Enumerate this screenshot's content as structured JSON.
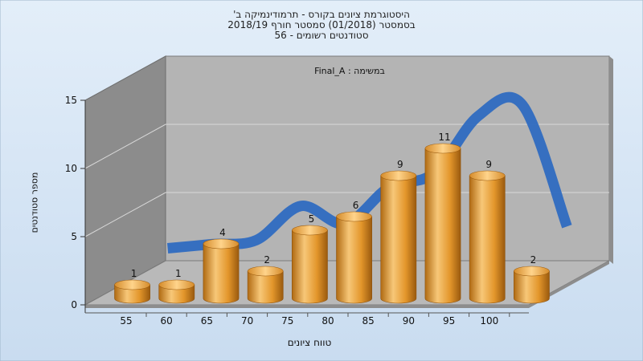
{
  "header": {
    "title_line1": "היסטוגרמת ציונים בקורס - תרמודינמיקה ב'",
    "title_line2": "בסמסטר  (01/2018)  סמסטר חורף  2018/19",
    "title_line3": "סטודנטים רשומים - 56"
  },
  "chart_data": {
    "type": "bar",
    "title": "היסטוגרמת ציונים בקורס - תרמודינמיקה ב'",
    "annotation": "במשימה : Final_A",
    "xlabel": "טווח ציונים",
    "ylabel": "מספר סטודנטים",
    "categories": [
      "55",
      "60",
      "65",
      "70",
      "75",
      "80",
      "85",
      "90",
      "95",
      "100"
    ],
    "values": [
      1,
      1,
      4,
      2,
      5,
      6,
      9,
      11,
      9,
      2
    ],
    "trend_line": [
      2.5,
      2.8,
      3.1,
      5.6,
      4.3,
      7.0,
      8.0,
      12.2,
      13.0,
      4.1
    ],
    "ylim": [
      0,
      15
    ],
    "yticks": [
      0,
      5,
      10,
      15
    ],
    "grid": true,
    "colors": {
      "bar": "#E8A33C",
      "trend": "#2F6BC1",
      "wall": "#B4B4B4",
      "side_wall": "#8C8C8C",
      "floor": "#B9B9B9",
      "background": "#D6E6F6"
    }
  }
}
